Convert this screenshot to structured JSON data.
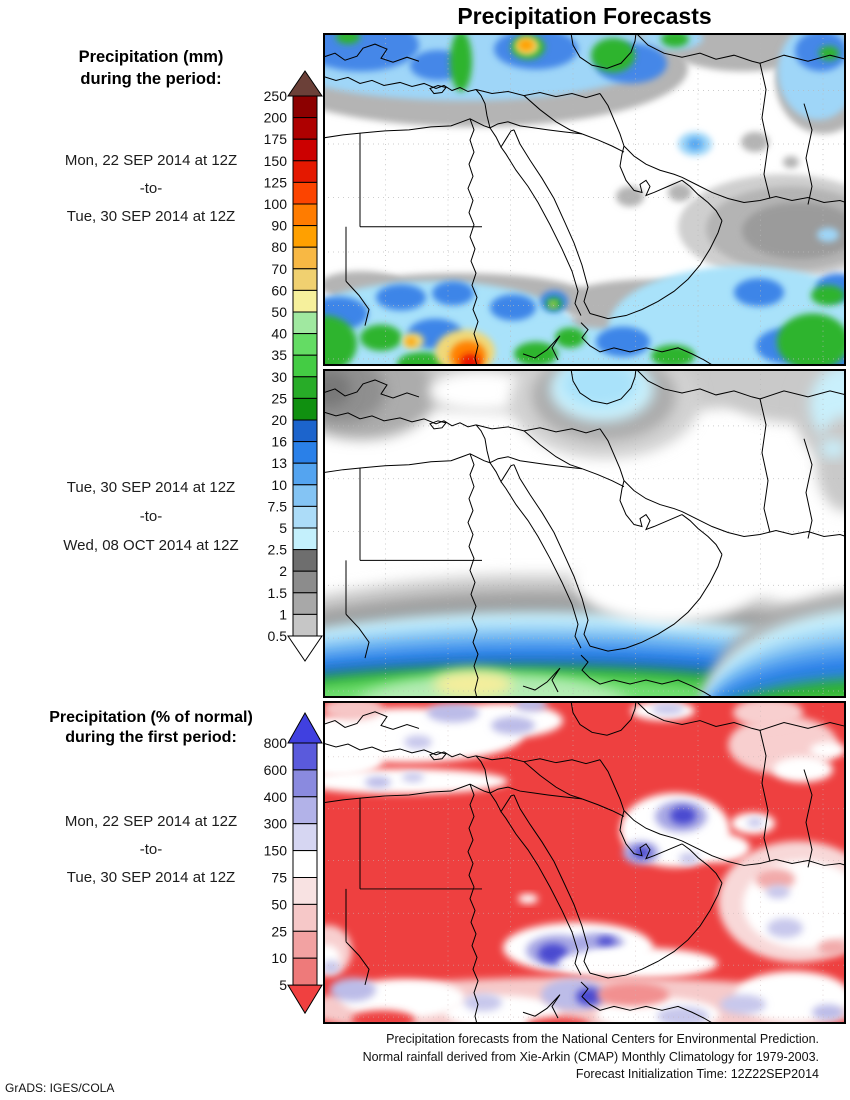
{
  "title": "Precipitation Forecasts",
  "panel1": {
    "heading_line1": "Precipitation (mm)",
    "heading_line2": "during the period:",
    "period_start": "Mon, 22 SEP 2014 at 12Z",
    "separator": "-to-",
    "period_end": "Tue, 30 SEP 2014 at 12Z"
  },
  "panel2": {
    "period_start": "Tue, 30 SEP 2014 at 12Z",
    "separator": "-to-",
    "period_end": "Wed, 08 OCT 2014 at 12Z"
  },
  "panel3": {
    "heading_line1": "Precipitation (% of normal)",
    "heading_line2": "during the first period:",
    "period_start": "Mon, 22 SEP 2014 at 12Z",
    "separator": "-to-",
    "period_end": "Tue, 30 SEP 2014 at 12Z"
  },
  "colorbars": [
    {
      "name": "precipitation-mm-scale",
      "labels": [
        "250",
        "200",
        "175",
        "150",
        "125",
        "100",
        "90",
        "80",
        "70",
        "60",
        "50",
        "40",
        "35",
        "30",
        "25",
        "20",
        "16",
        "13",
        "10",
        "7.5",
        "5",
        "2.5",
        "2",
        "1.5",
        "1",
        "0.5"
      ],
      "segment_colors": [
        "#8C0000",
        "#AE0000",
        "#CC0000",
        "#E41800",
        "#FC4400",
        "#FF7C00",
        "#FFA000",
        "#F8B844",
        "#F0D070",
        "#F6F09C",
        "#A0E8A0",
        "#64DC64",
        "#44CC44",
        "#28AC28",
        "#109010",
        "#1C64CC",
        "#2A80E8",
        "#54A4F0",
        "#84C4F4",
        "#ACDCF8",
        "#C4F0FC",
        "#6E6E6E",
        "#8C8C8C",
        "#A8A8A8",
        "#C6C6C6"
      ],
      "arrow_top_color": "#6B4038",
      "arrow_bottom_color": "#FFFFFF"
    },
    {
      "name": "percent-of-normal-scale",
      "labels": [
        "800",
        "600",
        "400",
        "300",
        "150",
        "75",
        "50",
        "25",
        "10",
        "5"
      ],
      "segment_colors": [
        "#5A5ADC",
        "#8A8ADF",
        "#B2B2E8",
        "#D6D6F2",
        "#FFFFFF",
        "#F8E2E2",
        "#F6C8C8",
        "#F2A2A2",
        "#EE7A7A"
      ],
      "arrow_top_color": "#4040E0",
      "arrow_bottom_color": "#F04040"
    }
  ],
  "footer": {
    "line1": "Precipitation forecasts from the National Centers for Environmental Prediction.",
    "line2": "Normal rainfall derived from Xie-Arkin (CMAP) Monthly Climatology for 1979-2003.",
    "line3": "Forecast Initialization Time: 12Z22SEP2014"
  },
  "credit": "GrADS: IGES/COLA"
}
